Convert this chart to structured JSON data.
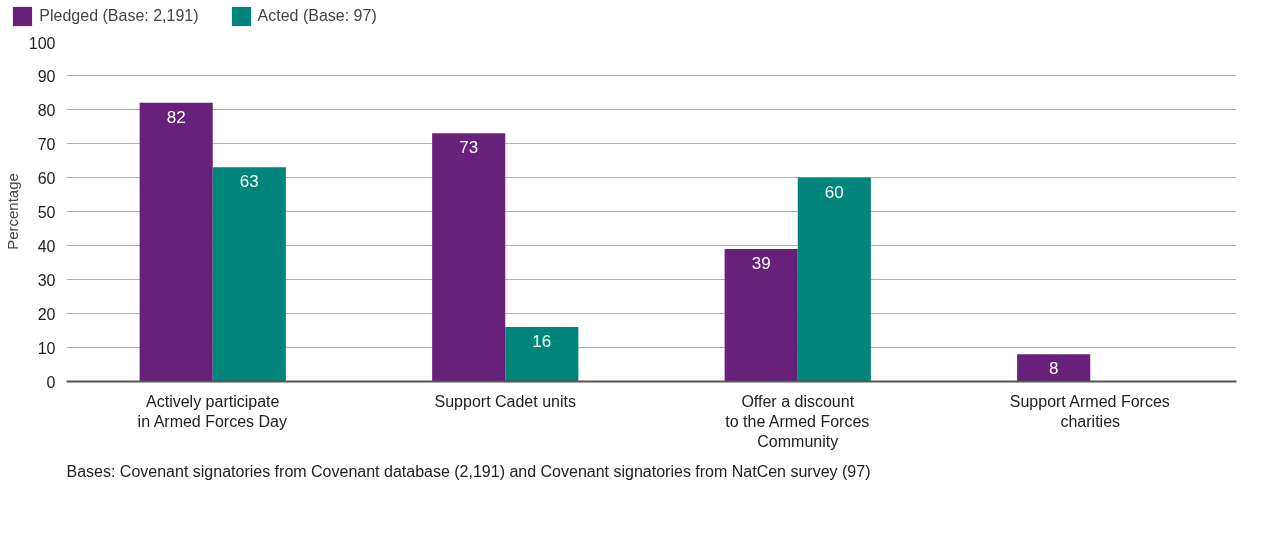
{
  "chart_data": {
    "type": "bar",
    "ylabel": "Percentage",
    "categories": [
      "Actively participate\nin Armed Forces Day",
      "Support Cadet units",
      "Offer a discount\nto the Armed Forces\nCommunity",
      "Support Armed Forces\ncharities"
    ],
    "series": [
      {
        "name": "Pledged (Base: 2,191)",
        "color": "#68217a",
        "values": [
          82,
          73,
          39,
          8
        ]
      },
      {
        "name": "Acted (Base: 97)",
        "color": "#00857a",
        "values": [
          63,
          16,
          60,
          null
        ]
      }
    ],
    "ylim": [
      0,
      100
    ],
    "yticks": [
      0,
      10,
      20,
      30,
      40,
      50,
      60,
      70,
      80,
      90,
      100
    ],
    "grid": "y",
    "legend": "top left",
    "data_labels": true,
    "annotations": [
      "Bases: Covenant signatories from Covenant database (2,191) and Covenant signatories from NatCen survey (97)"
    ]
  }
}
